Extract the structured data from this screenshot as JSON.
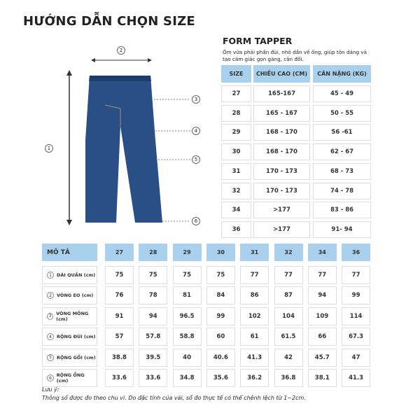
{
  "title": "HƯỚNG DẪN CHỌN SIZE",
  "form": {
    "name": "FORM TAPPER",
    "description": "Ôm vừa phải phần đùi, nhỏ dần về ống, giúp tôn dáng và tạo cảm giác gọn gàng, cân đối."
  },
  "size_table": {
    "headers": [
      "SIZE",
      "CHIỀU CAO (CM)",
      "CÂN NẶNG (KG)"
    ],
    "rows": [
      [
        "27",
        "165-167",
        "45 - 49"
      ],
      [
        "28",
        "165 - 167",
        "50 - 55"
      ],
      [
        "29",
        "168 - 170",
        "56 -61"
      ],
      [
        "30",
        "168 - 170",
        "62 - 67"
      ],
      [
        "31",
        "170 - 173",
        "68 - 73"
      ],
      [
        "32",
        "170 - 173",
        "74 - 78"
      ],
      [
        "34",
        ">177",
        "83 - 86"
      ],
      [
        "36",
        ">177",
        "91- 94"
      ]
    ]
  },
  "measure_table": {
    "header": "MÔ TẢ",
    "sizes": [
      "27",
      "28",
      "29",
      "30",
      "31",
      "32",
      "34",
      "36"
    ],
    "rows": [
      {
        "num": "1",
        "label": "DÀI QUẦN (cm)",
        "values": [
          "75",
          "75",
          "75",
          "75",
          "77",
          "77",
          "77",
          "77"
        ]
      },
      {
        "num": "2",
        "label": "VÒNG EO (cm)",
        "values": [
          "76",
          "78",
          "81",
          "84",
          "86",
          "87",
          "94",
          "99"
        ]
      },
      {
        "num": "3",
        "label": "VÒNG MÔNG (cm)",
        "values": [
          "91",
          "94",
          "96.5",
          "99",
          "102",
          "104",
          "109",
          "114"
        ]
      },
      {
        "num": "4",
        "label": "RỘNG ĐÙI (cm)",
        "values": [
          "57",
          "57.8",
          "58.8",
          "60",
          "61",
          "61.5",
          "66",
          "67.3"
        ]
      },
      {
        "num": "5",
        "label": "RỘNG GỐI (cm)",
        "values": [
          "38.8",
          "39.5",
          "40",
          "40.6",
          "41.3",
          "42",
          "45.7",
          "47"
        ]
      },
      {
        "num": "6",
        "label": "RỘNG ỐNG (cm)",
        "values": [
          "33.6",
          "33.6",
          "34.8",
          "35.6",
          "36.2",
          "36.8",
          "38.1",
          "41.3"
        ]
      }
    ]
  },
  "markers": [
    "1",
    "2",
    "3",
    "4",
    "5",
    "6"
  ],
  "notes": {
    "label": "Lưu ý:",
    "text": "Thông số được đo theo chu vi. Do đặc tính của vải, số đo thực tế có thể chênh lệch từ 1~2cm."
  },
  "colors": {
    "header_bg": "#a9d1ee",
    "denim": "#2a4f86"
  }
}
